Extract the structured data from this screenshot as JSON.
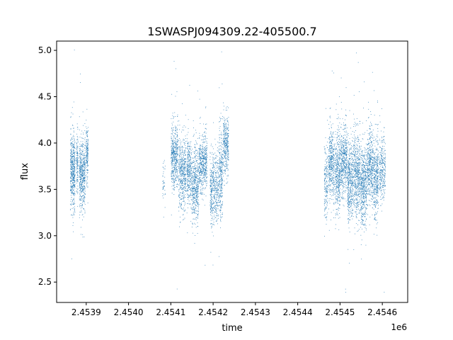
{
  "chart_data": {
    "type": "scatter",
    "title": "1SWASPJ094309.22-405500.7",
    "xlabel": "time",
    "ylabel": "flux",
    "x_offset_label": "1e6",
    "xlim": [
      2453830,
      2454660
    ],
    "ylim": [
      2.28,
      5.1
    ],
    "x_ticks": [
      2453900,
      2454000,
      2454100,
      2454200,
      2454300,
      2454400,
      2454500,
      2454600
    ],
    "x_tick_labels": [
      "2.4539",
      "2.4540",
      "2.4541",
      "2.4542",
      "2.4543",
      "2.4544",
      "2.4545",
      "2.4546"
    ],
    "y_ticks": [
      2.5,
      3.0,
      3.5,
      4.0,
      4.5,
      5.0
    ],
    "y_tick_labels": [
      "2.5",
      "3.0",
      "3.5",
      "4.0",
      "4.5",
      "5.0"
    ],
    "grid": false,
    "marker_color": "#1f77b4",
    "series": [
      {
        "clusters": [
          {
            "x_range": [
              2453862,
              2453873
            ],
            "center": 3.7,
            "spread": 0.28,
            "count": 500
          },
          {
            "x_range": [
              2453876,
              2453880
            ],
            "center": 3.78,
            "spread": 0.22,
            "count": 130
          },
          {
            "x_range": [
              2453883,
              2453897
            ],
            "center": 3.65,
            "spread": 0.28,
            "count": 520
          },
          {
            "x_range": [
              2453899,
              2453904
            ],
            "center": 3.9,
            "spread": 0.2,
            "count": 170
          },
          {
            "x_range": [
              2454080,
              2454086
            ],
            "center": 3.6,
            "spread": 0.18,
            "count": 40
          },
          {
            "x_range": [
              2454100,
              2454116
            ],
            "center": 3.85,
            "spread": 0.25,
            "count": 500
          },
          {
            "x_range": [
              2454118,
              2454135
            ],
            "center": 3.68,
            "spread": 0.27,
            "count": 480
          },
          {
            "x_range": [
              2454137,
              2454148
            ],
            "center": 3.7,
            "spread": 0.25,
            "count": 320
          },
          {
            "x_range": [
              2454149,
              2454165
            ],
            "center": 3.55,
            "spread": 0.28,
            "count": 480
          },
          {
            "x_range": [
              2454166,
              2454185
            ],
            "center": 3.78,
            "spread": 0.22,
            "count": 520
          },
          {
            "x_range": [
              2454192,
              2454212
            ],
            "center": 3.52,
            "spread": 0.28,
            "count": 480
          },
          {
            "x_range": [
              2454213,
              2454222
            ],
            "center": 3.65,
            "spread": 0.35,
            "count": 300
          },
          {
            "x_range": [
              2454223,
              2454236
            ],
            "center": 3.98,
            "spread": 0.22,
            "count": 350
          },
          {
            "x_range": [
              2454462,
              2454470
            ],
            "center": 3.6,
            "spread": 0.28,
            "count": 180
          },
          {
            "x_range": [
              2454472,
              2454486
            ],
            "center": 3.78,
            "spread": 0.27,
            "count": 420
          },
          {
            "x_range": [
              2454488,
              2454500
            ],
            "center": 3.68,
            "spread": 0.3,
            "count": 420
          },
          {
            "x_range": [
              2454501,
              2454516
            ],
            "center": 3.82,
            "spread": 0.28,
            "count": 480
          },
          {
            "x_range": [
              2454517,
              2454530
            ],
            "center": 3.6,
            "spread": 0.3,
            "count": 460
          },
          {
            "x_range": [
              2454531,
              2454547
            ],
            "center": 3.65,
            "spread": 0.32,
            "count": 520
          },
          {
            "x_range": [
              2454548,
              2454562
            ],
            "center": 3.55,
            "spread": 0.3,
            "count": 500
          },
          {
            "x_range": [
              2454563,
              2454578
            ],
            "center": 3.75,
            "spread": 0.28,
            "count": 470
          },
          {
            "x_range": [
              2454579,
              2454590
            ],
            "center": 3.62,
            "spread": 0.3,
            "count": 380
          },
          {
            "x_range": [
              2454592,
              2454607
            ],
            "center": 3.72,
            "spread": 0.26,
            "count": 300
          }
        ]
      }
    ]
  }
}
